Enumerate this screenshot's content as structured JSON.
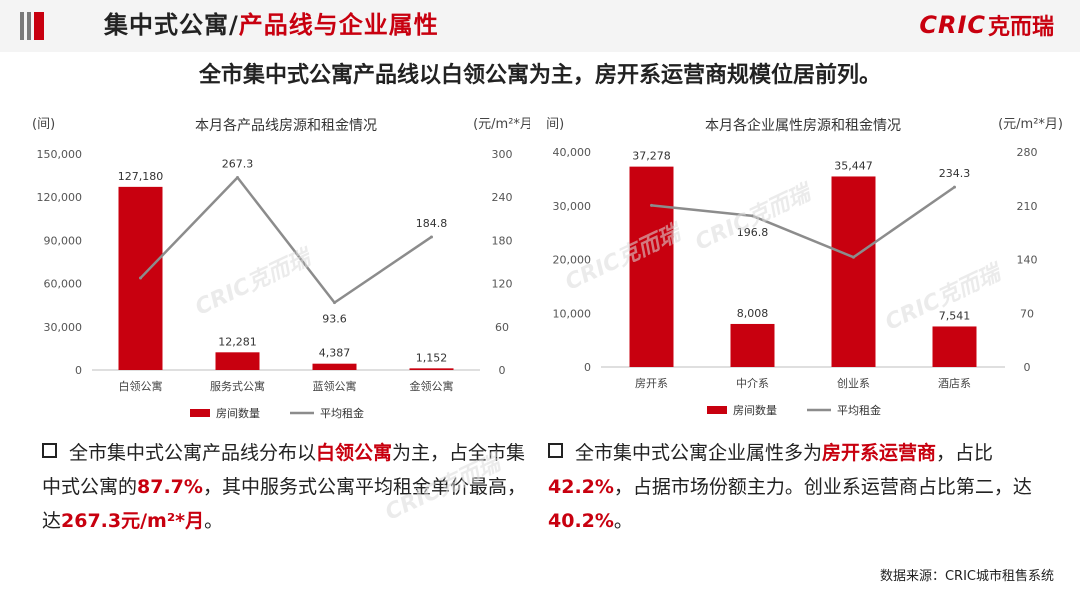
{
  "header": {
    "title_part1": "集中式公寓/",
    "title_part2": "产品线与企业属性",
    "logo_latin": "CRIC",
    "logo_cn": "克而瑞",
    "colors": {
      "accent": "#c8000f",
      "dark": "#333333",
      "bar_stripe": "#7a7a7a"
    }
  },
  "subtitle": "全市集中式公寓产品线以白领公寓为主，房开系运营商规模位居前列。",
  "chart_data": [
    {
      "type": "bar",
      "title": "本月各产品线房源和租金情况",
      "left_unit": "(间)",
      "right_unit": "(元/m²*月)",
      "categories": [
        "白领公寓",
        "服务式公寓",
        "蓝领公寓",
        "金领公寓"
      ],
      "series": [
        {
          "name": "房间数量",
          "type": "bar",
          "axis": "left",
          "color": "#c8000f",
          "values": [
            127180,
            12281,
            4387,
            1152
          ],
          "labels": [
            "127,180",
            "12,281",
            "4,387",
            "1,152"
          ]
        },
        {
          "name": "平均租金",
          "type": "line",
          "axis": "right",
          "color": "#8c8c8c",
          "values": [
            127.7,
            267.3,
            93.6,
            184.8
          ],
          "labels": [
            "",
            "267.3",
            "93.6",
            "184.8"
          ]
        }
      ],
      "ylim_left": [
        0,
        150000
      ],
      "ylim_right": [
        0,
        300
      ],
      "left_ticks": [
        "150,000",
        "120,000",
        "90,000",
        "60,000",
        "30,000",
        "0"
      ],
      "right_ticks": [
        "300",
        "240",
        "180",
        "120",
        "60",
        "0"
      ],
      "legend": [
        "房间数量",
        "平均租金"
      ],
      "legend_position": "bottom"
    },
    {
      "type": "bar",
      "title": "本月各企业属性房源和租金情况",
      "left_unit": "(间)",
      "right_unit": "(元/m²*月)",
      "categories": [
        "房开系",
        "中介系",
        "创业系",
        "酒店系"
      ],
      "series": [
        {
          "name": "房间数量",
          "type": "bar",
          "axis": "left",
          "color": "#c8000f",
          "values": [
            37278,
            8008,
            35447,
            7541
          ],
          "labels": [
            "37,278",
            "8,008",
            "35,447",
            "7,541"
          ]
        },
        {
          "name": "平均租金",
          "type": "line",
          "axis": "right",
          "color": "#8c8c8c",
          "values": [
            210.5,
            196.8,
            143.0,
            234.3
          ],
          "labels": [
            "",
            "196.8",
            "",
            "234.3"
          ]
        }
      ],
      "ylim_left": [
        0,
        40000
      ],
      "ylim_right": [
        0,
        280
      ],
      "left_ticks": [
        "40,000",
        "30,000",
        "20,000",
        "10,000",
        "0"
      ],
      "right_ticks": [
        "280",
        "210",
        "140",
        "70",
        "0"
      ],
      "legend": [
        "房间数量",
        "平均租金"
      ],
      "legend_position": "bottom"
    }
  ],
  "bullets": [
    {
      "segments": [
        {
          "text": "全市集中式公寓产品线分布以",
          "hl": false
        },
        {
          "text": "白领公寓",
          "hl": true
        },
        {
          "text": "为主，占全市集中式公寓的",
          "hl": false
        },
        {
          "text": "87.7%",
          "hl": true
        },
        {
          "text": "，其中服务式公寓平均租金单价最高，达",
          "hl": false
        },
        {
          "text": "267.3元/m²*月",
          "hl": true
        },
        {
          "text": "。",
          "hl": false
        }
      ]
    },
    {
      "segments": [
        {
          "text": "全市集中式公寓企业属性多为",
          "hl": false
        },
        {
          "text": "房开系运营商",
          "hl": true
        },
        {
          "text": "，占比",
          "hl": false
        },
        {
          "text": "42.2%",
          "hl": true
        },
        {
          "text": "，占据市场份额主力。创业系运营商占比第二，达",
          "hl": false
        },
        {
          "text": "40.2%",
          "hl": true
        },
        {
          "text": "。",
          "hl": false
        }
      ]
    }
  ],
  "source": "数据来源：CRIC城市租售系统",
  "watermark": "CRIC克而瑞"
}
